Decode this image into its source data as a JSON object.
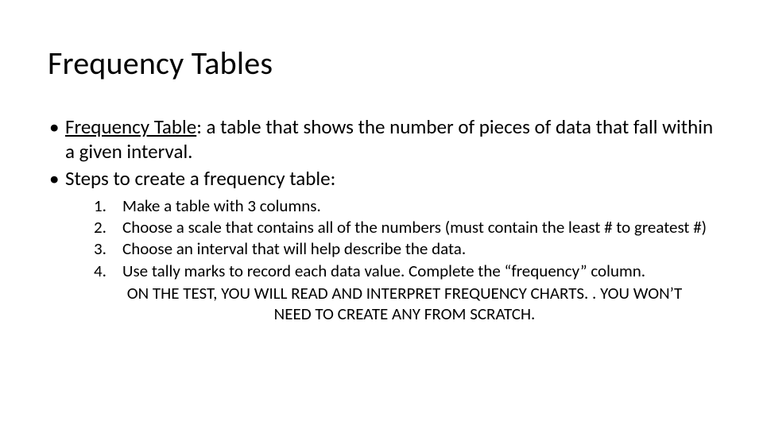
{
  "slide": {
    "title": "Frequency Tables",
    "title_fontsize": 40,
    "body_fontsize_l1": 25,
    "body_fontsize_l2": 21,
    "text_color": "#000000",
    "background_color": "#ffffff",
    "bullets": [
      {
        "term": "Frequency Table",
        "definition": ": a table that shows the number of pieces of data that fall within a given interval."
      },
      {
        "text": "Steps to create a frequency table:"
      }
    ],
    "steps": [
      "Make a table with 3 columns.",
      "Choose a scale that contains all of the numbers (must contain the least # to greatest #)",
      "Choose an interval that will help describe the data.",
      "Use tally marks to record each data value. Complete the “frequency” column."
    ],
    "note": "ON THE TEST, YOU WILL READ AND INTERPRET FREQUENCY CHARTS. . YOU WON’T NEED TO CREATE ANY FROM SCRATCH."
  }
}
